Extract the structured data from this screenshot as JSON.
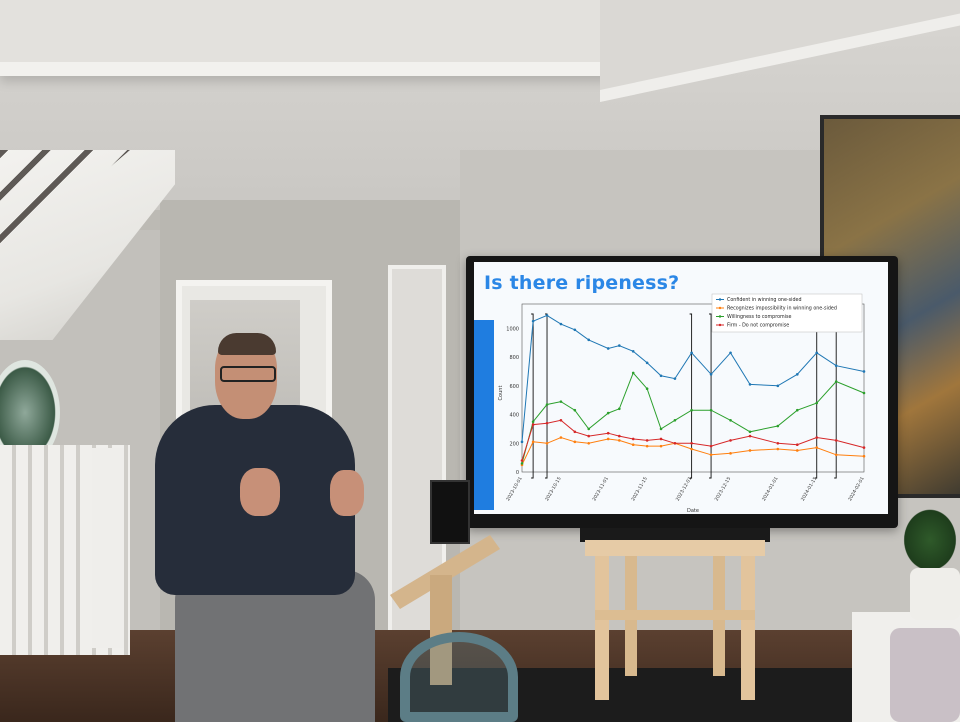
{
  "slide": {
    "title": "Is there ripeness?",
    "accent_color": "#2b87e6"
  },
  "chart_data": {
    "type": "line",
    "title": "",
    "xlabel": "Date",
    "ylabel": "Count",
    "ylim": [
      0,
      1100
    ],
    "yticks": [
      0,
      200,
      400,
      600,
      800,
      1000
    ],
    "x_ticks": [
      "2023-10-01",
      "2023-10-15",
      "2023-11-01",
      "2023-11-15",
      "2023-12-01",
      "2023-12-15",
      "2024-01-01",
      "2024-01-15",
      "2024-02-01"
    ],
    "x": [
      "2023-10-01",
      "2023-10-05",
      "2023-10-10",
      "2023-10-15",
      "2023-10-20",
      "2023-10-25",
      "2023-11-01",
      "2023-11-05",
      "2023-11-10",
      "2023-11-15",
      "2023-11-20",
      "2023-11-25",
      "2023-12-01",
      "2023-12-08",
      "2023-12-15",
      "2023-12-22",
      "2024-01-01",
      "2024-01-08",
      "2024-01-15",
      "2024-01-22",
      "2024-02-01"
    ],
    "legend_position": "top-right",
    "series": [
      {
        "name": "Confident in winning one-sided",
        "color": "#1f77b4",
        "values": [
          210,
          1050,
          1090,
          1030,
          990,
          920,
          860,
          880,
          840,
          760,
          670,
          650,
          830,
          680,
          830,
          610,
          600,
          680,
          830,
          740,
          700
        ]
      },
      {
        "name": "Recognizes impossibility in winning one-sided",
        "color": "#ff7f0e",
        "values": [
          50,
          210,
          200,
          240,
          210,
          200,
          230,
          220,
          190,
          180,
          180,
          200,
          160,
          120,
          130,
          150,
          160,
          150,
          170,
          120,
          110
        ]
      },
      {
        "name": "Willingness to compromise",
        "color": "#2ca02c",
        "values": [
          60,
          350,
          470,
          490,
          430,
          300,
          410,
          440,
          690,
          580,
          300,
          360,
          430,
          430,
          360,
          280,
          320,
          430,
          480,
          630,
          550
        ]
      },
      {
        "name": "Firm - Do not compromise",
        "color": "#d62728",
        "values": [
          80,
          330,
          340,
          360,
          280,
          250,
          270,
          250,
          230,
          220,
          230,
          200,
          200,
          180,
          220,
          250,
          200,
          190,
          240,
          220,
          170
        ]
      }
    ],
    "bracket_ranges": [
      [
        "2023-10-05",
        "2023-10-10"
      ],
      [
        "2023-12-01",
        "2023-12-08"
      ],
      [
        "2024-01-15",
        "2024-01-22"
      ]
    ]
  }
}
